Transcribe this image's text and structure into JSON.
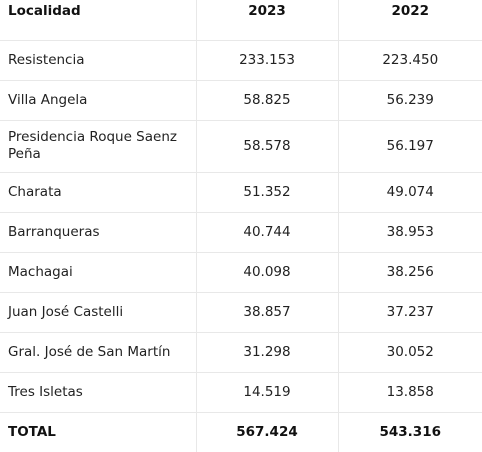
{
  "header": {
    "localidad": "Localidad",
    "year_2023": "2023",
    "year_2022": "2022"
  },
  "rows": [
    {
      "localidad": "Resistencia",
      "v2023": "233.153",
      "v2022": "223.450"
    },
    {
      "localidad": "Villa Angela",
      "v2023": "58.825",
      "v2022": "56.239"
    },
    {
      "localidad": "Presidencia Roque Saenz Peña",
      "v2023": "58.578",
      "v2022": "56.197"
    },
    {
      "localidad": "Charata",
      "v2023": "51.352",
      "v2022": "49.074"
    },
    {
      "localidad": "Barranqueras",
      "v2023": "40.744",
      "v2022": "38.953"
    },
    {
      "localidad": "Machagai",
      "v2023": "40.098",
      "v2022": "38.256"
    },
    {
      "localidad": "Juan José Castelli",
      "v2023": "38.857",
      "v2022": "37.237"
    },
    {
      "localidad": "Gral. José de San Martín",
      "v2023": "31.298",
      "v2022": "30.052"
    },
    {
      "localidad": "Tres Isletas",
      "v2023": "14.519",
      "v2022": "13.858"
    }
  ],
  "total": {
    "label": "TOTAL",
    "v2023": "567.424",
    "v2022": "543.316"
  }
}
